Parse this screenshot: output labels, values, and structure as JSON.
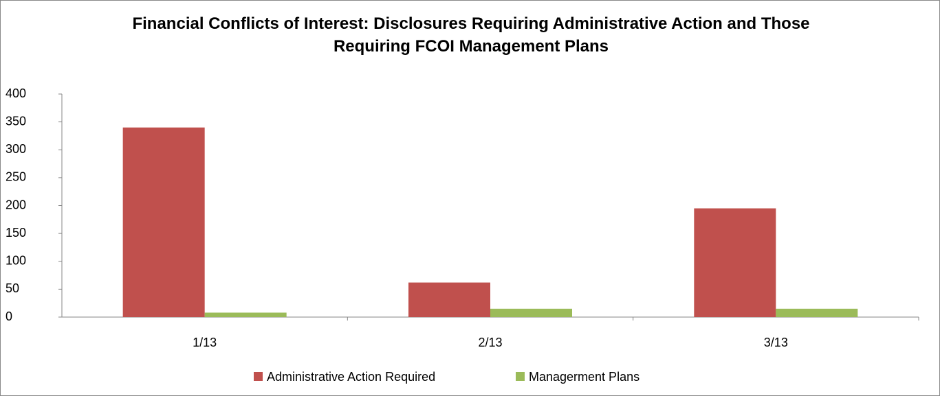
{
  "chart_data": {
    "type": "bar",
    "title": "Financial Conflicts of Interest: Disclosures Requiring Administrative Action and Those Requiring FCOI Management Plans",
    "categories": [
      "1/13",
      "2/13",
      "3/13"
    ],
    "series": [
      {
        "name": "Administrative Action Required",
        "color": "#c0504d",
        "values": [
          340,
          62,
          195
        ]
      },
      {
        "name": "Managerment Plans",
        "color": "#9bbb59",
        "values": [
          8,
          15,
          15
        ]
      }
    ],
    "ylim": [
      0,
      400
    ],
    "yticks": [
      0,
      50,
      100,
      150,
      200,
      250,
      300,
      350,
      400
    ],
    "grid": false,
    "legend": "bottom"
  }
}
